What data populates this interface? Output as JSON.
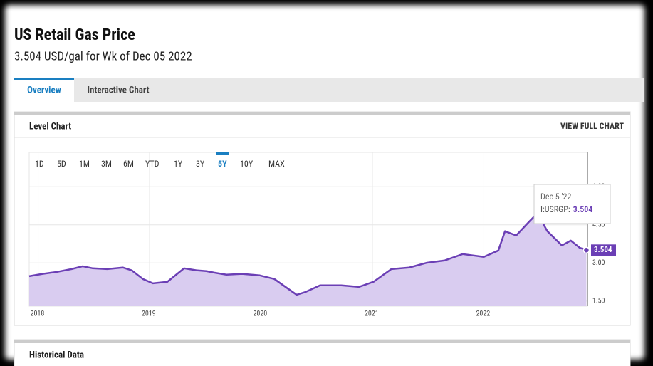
{
  "header": {
    "title": "US Retail Gas Price",
    "subtitle": "3.504 USD/gal for Wk of Dec 05 2022"
  },
  "tabs": [
    {
      "label": "Overview",
      "active": true
    },
    {
      "label": "Interactive Chart",
      "active": false
    }
  ],
  "panel": {
    "title": "Level Chart",
    "action": "VIEW FULL CHART"
  },
  "range_buttons": [
    {
      "label": "1D",
      "active": false
    },
    {
      "label": "5D",
      "active": false
    },
    {
      "label": "1M",
      "active": false
    },
    {
      "label": "3M",
      "active": false
    },
    {
      "label": "6M",
      "active": false
    },
    {
      "label": "YTD",
      "active": false
    },
    {
      "label": "1Y",
      "active": false
    },
    {
      "label": "3Y",
      "active": false
    },
    {
      "label": "5Y",
      "active": true
    },
    {
      "label": "10Y",
      "active": false
    },
    {
      "label": "MAX",
      "active": false
    }
  ],
  "chart_data": {
    "type": "line",
    "x": [
      2017.92,
      2018.04,
      2018.17,
      2018.3,
      2018.4,
      2018.49,
      2018.62,
      2018.76,
      2018.84,
      2018.94,
      2019.03,
      2019.16,
      2019.31,
      2019.42,
      2019.51,
      2019.58,
      2019.69,
      2019.83,
      2019.99,
      2020.12,
      2020.21,
      2020.32,
      2020.4,
      2020.53,
      2020.72,
      2020.88,
      2021.01,
      2021.17,
      2021.33,
      2021.49,
      2021.65,
      2021.81,
      2022.0,
      2022.13,
      2022.19,
      2022.29,
      2022.41,
      2022.48,
      2022.57,
      2022.7,
      2022.78,
      2022.86,
      2022.92
    ],
    "series": [
      {
        "name": "I:USRGP:",
        "color": "#6b3fb5",
        "fill": "#d9ccf0",
        "values": [
          2.48,
          2.57,
          2.65,
          2.76,
          2.87,
          2.79,
          2.76,
          2.82,
          2.71,
          2.37,
          2.2,
          2.26,
          2.79,
          2.71,
          2.68,
          2.62,
          2.54,
          2.57,
          2.51,
          2.37,
          2.09,
          1.75,
          1.86,
          2.12,
          2.12,
          2.06,
          2.26,
          2.76,
          2.82,
          3.01,
          3.1,
          3.35,
          3.24,
          3.49,
          4.25,
          4.08,
          4.64,
          4.95,
          4.25,
          3.69,
          3.88,
          3.6,
          3.504
        ]
      }
    ],
    "xlim": [
      2017.92,
      2022.93
    ],
    "ylim": [
      1.3,
      7.35
    ],
    "xticks": [
      2018,
      2019,
      2020,
      2021,
      2022
    ],
    "yticks": [
      {
        "value": 1.5,
        "label": "1.50"
      },
      {
        "value": 3,
        "label": "3.00"
      },
      {
        "value": 4.5,
        "label": "4.50"
      },
      {
        "value": 6,
        "label": "6.00"
      }
    ],
    "grid": true,
    "tooltip": {
      "date": "Dec 5 '22"
    }
  },
  "next_panel": {
    "title": "Historical Data"
  }
}
